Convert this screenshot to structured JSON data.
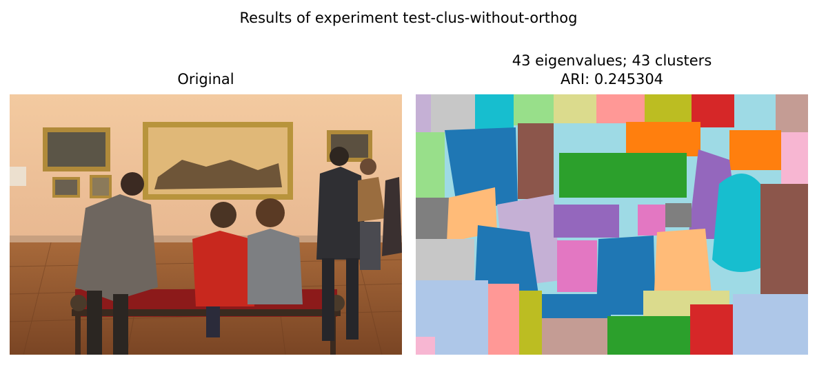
{
  "figure": {
    "suptitle": "Results of experiment test-clus-without-orthog"
  },
  "panels": {
    "left": {
      "title": "Original"
    },
    "right": {
      "title_line1": "43 eigenvalues; 43 clusters",
      "title_line2": "ARI: 0.245304"
    }
  },
  "image_content": {
    "left": "museum-visitors-photo",
    "right": "segmentation-cluster-map"
  },
  "colors": {
    "cluster_palette": [
      "#1f77b4",
      "#aec7e8",
      "#ff7f0e",
      "#ffbb78",
      "#2ca02c",
      "#98df8a",
      "#d62728",
      "#ff9896",
      "#9467bd",
      "#c5b0d5",
      "#8c564b",
      "#c49c94",
      "#e377c2",
      "#f7b6d2",
      "#7f7f7f",
      "#c7c7c7",
      "#bcbd22",
      "#dbdb8d",
      "#17becf",
      "#9edae5"
    ]
  }
}
